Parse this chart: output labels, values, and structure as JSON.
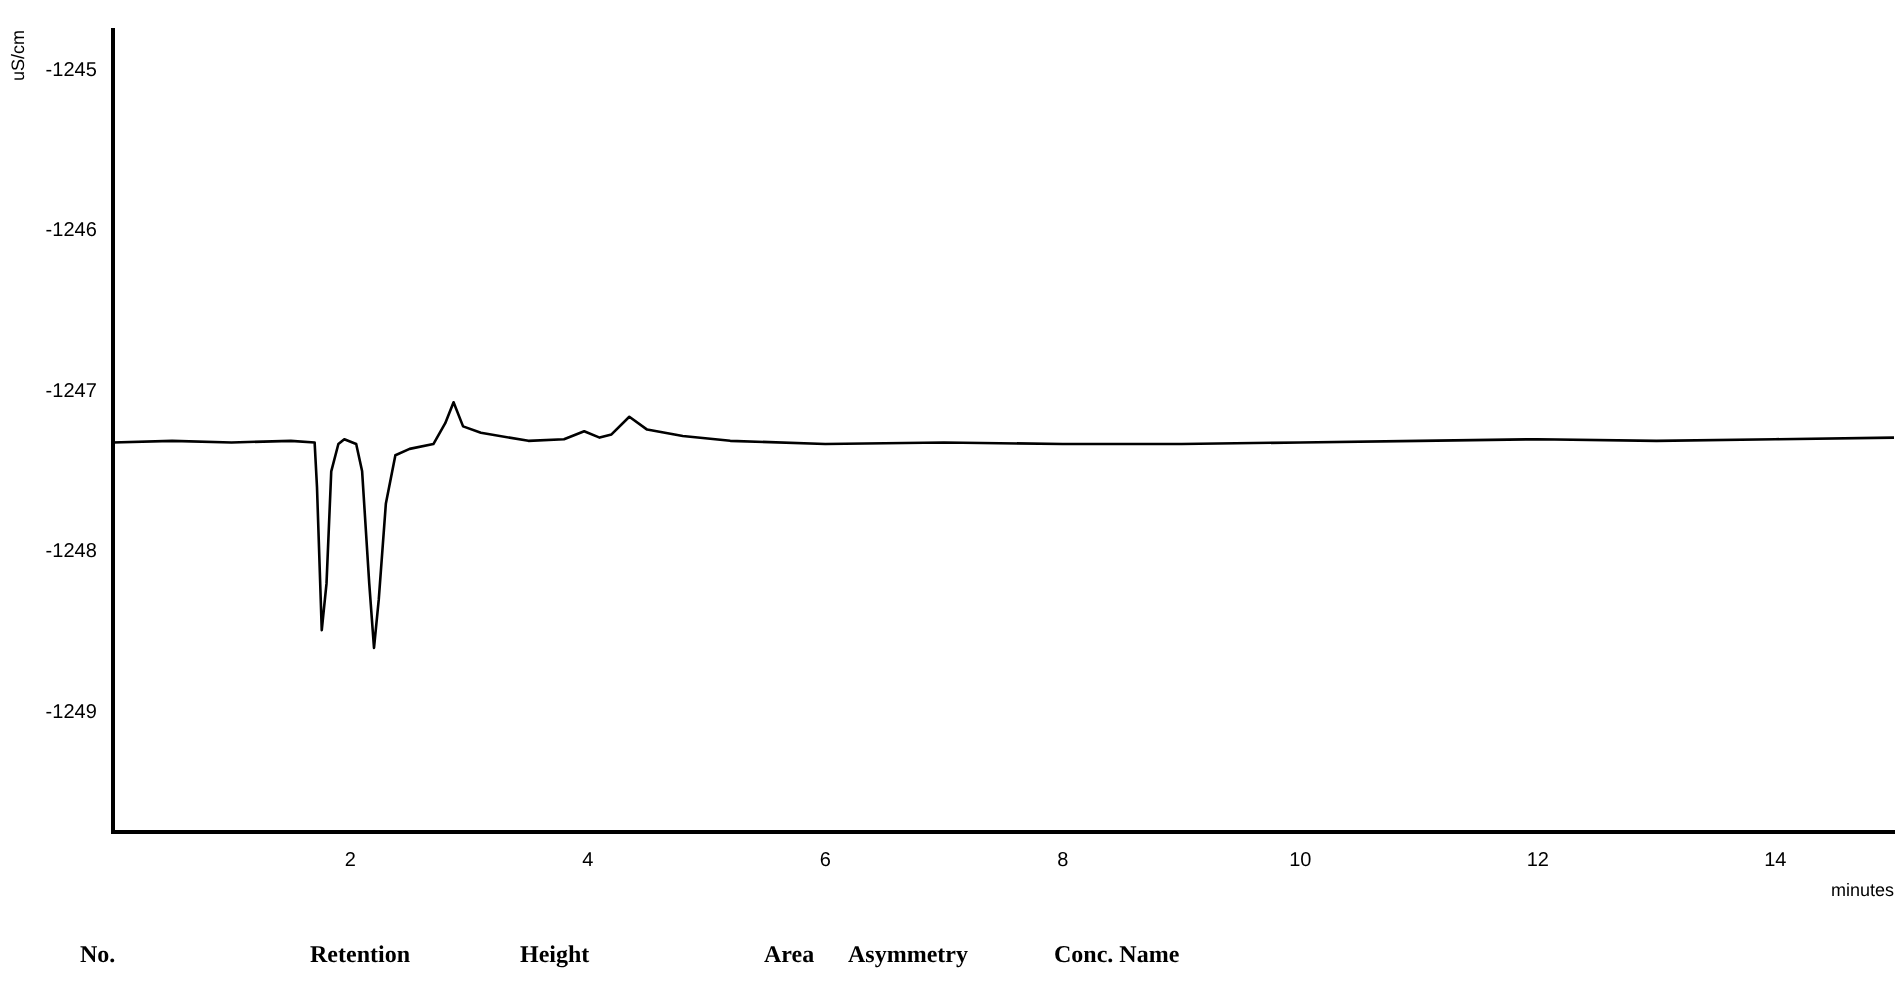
{
  "chart_data": {
    "type": "line",
    "xlabel": "minutes",
    "ylabel": "uS/cm",
    "xlim": [
      0,
      15
    ],
    "xticks": [
      2,
      4,
      6,
      8,
      10,
      12,
      14
    ],
    "ylim": [
      -1249.75,
      -1244.75
    ],
    "yticks": [
      -1249,
      -1248,
      -1247,
      -1246,
      -1245
    ],
    "grid": false,
    "legend": false,
    "marker": "none",
    "line_style": "solid",
    "series": [
      {
        "color": "#000000",
        "x": [
          0,
          0.5,
          1,
          1.5,
          1.7,
          1.72,
          1.76,
          1.8,
          1.84,
          1.9,
          1.95,
          2.05,
          2.1,
          2.16,
          2.2,
          2.24,
          2.3,
          2.38,
          2.5,
          2.7,
          2.8,
          2.87,
          2.95,
          3.1,
          3.5,
          3.8,
          3.97,
          4.1,
          4.2,
          4.35,
          4.5,
          4.8,
          5.2,
          6,
          7,
          8,
          9,
          10,
          11,
          12,
          13,
          14,
          15
        ],
        "values": [
          -1247.32,
          -1247.31,
          -1247.32,
          -1247.31,
          -1247.32,
          -1247.6,
          -1248.49,
          -1248.2,
          -1247.5,
          -1247.33,
          -1247.3,
          -1247.33,
          -1247.5,
          -1248.2,
          -1248.6,
          -1248.3,
          -1247.7,
          -1247.4,
          -1247.36,
          -1247.33,
          -1247.2,
          -1247.07,
          -1247.22,
          -1247.26,
          -1247.31,
          -1247.3,
          -1247.25,
          -1247.29,
          -1247.27,
          -1247.16,
          -1247.24,
          -1247.28,
          -1247.31,
          -1247.33,
          -1247.32,
          -1247.33,
          -1247.33,
          -1247.32,
          -1247.31,
          -1247.3,
          -1247.31,
          -1247.3,
          -1247.29
        ]
      }
    ],
    "annotations": [
      "No.",
      "Retention",
      "Height",
      "Area",
      "Asymmetry",
      "Conc. Name"
    ]
  }
}
